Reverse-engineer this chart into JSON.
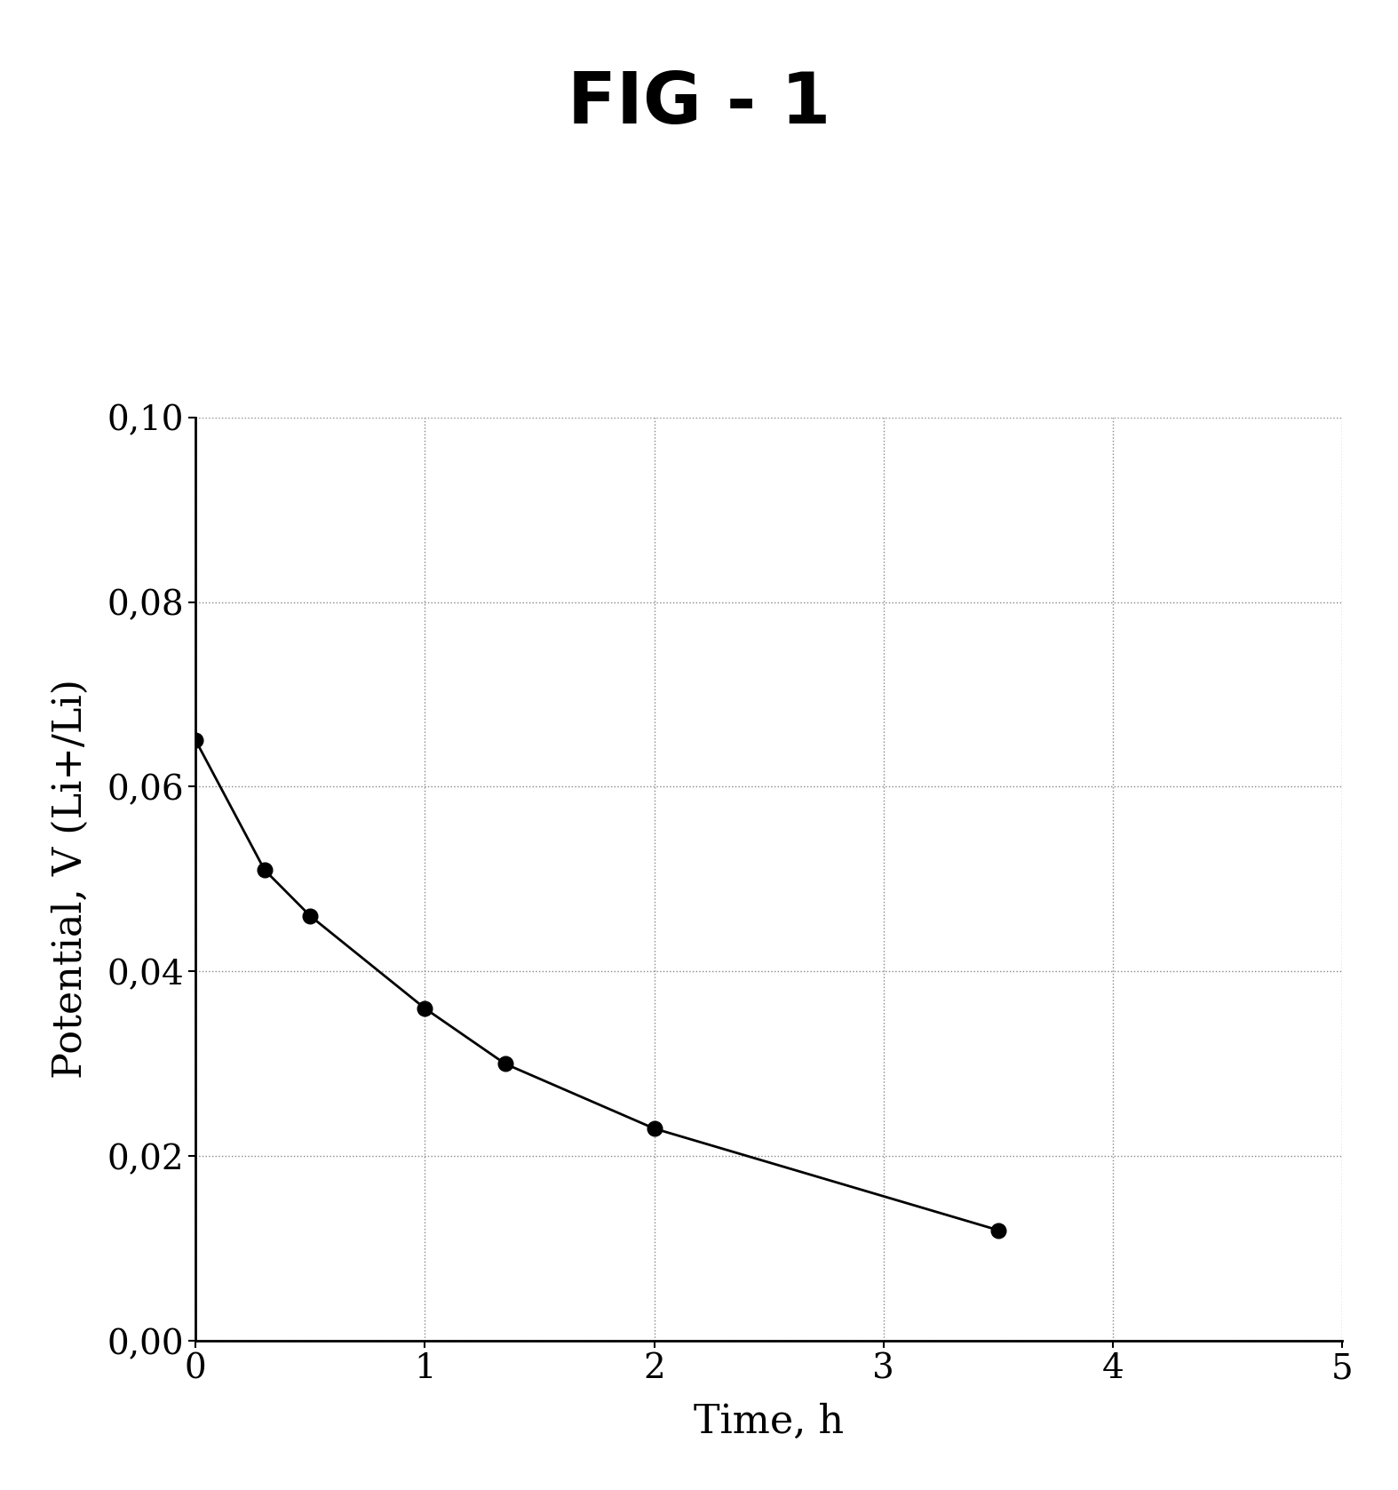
{
  "title": "FIG - 1",
  "xlabel": "Time, h",
  "ylabel": "Potential, V (Li+/Li)",
  "x_data": [
    0.0,
    0.3,
    0.5,
    1.0,
    1.35,
    2.0,
    3.5
  ],
  "y_data": [
    0.065,
    0.051,
    0.046,
    0.036,
    0.03,
    0.023,
    0.012
  ],
  "xlim": [
    0,
    5
  ],
  "ylim": [
    0.0,
    0.1
  ],
  "xticks": [
    0,
    1,
    2,
    3,
    4,
    5
  ],
  "yticks": [
    0.0,
    0.02,
    0.04,
    0.06,
    0.08,
    0.1
  ],
  "background_color": "#ffffff",
  "line_color": "#000000",
  "marker_color": "#000000",
  "marker_size": 12,
  "line_width": 2.0,
  "grid_color": "#888888",
  "title_fontsize": 58,
  "label_fontsize": 32,
  "tick_fontsize": 28
}
